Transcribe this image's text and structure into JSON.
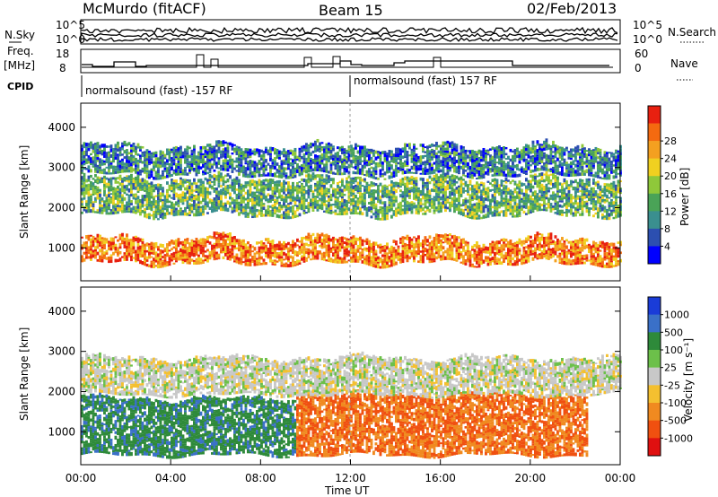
{
  "header": {
    "station": "McMurdo (fitACF)",
    "beam": "Beam 15",
    "date": "02/Feb/2013"
  },
  "params": {
    "nsky_label": "N.Sky",
    "nsearch_label": "N.Search",
    "noise_ticks": [
      "10^5",
      "10^0"
    ],
    "freq_label": "Freq.",
    "freq_unit": "[MHz]",
    "freq_ticks": [
      "18",
      "8"
    ],
    "nave_label": "Nave",
    "nave_ticks": [
      "60",
      "0"
    ],
    "cpid_label": "CPID",
    "cpid_segments": [
      {
        "label": "normalsound (fast) -157 RF",
        "start_hour": 0,
        "end_hour": 12
      },
      {
        "label": "normalsound (fast) 157 RF",
        "start_hour": 12,
        "end_hour": 24
      }
    ]
  },
  "chart_data": [
    {
      "type": "heatmap",
      "title": "",
      "xlabel": "Time UT",
      "ylabel": "Slant Range [km]",
      "x_ticks": [
        "00:00",
        "04:00",
        "08:00",
        "12:00",
        "16:00",
        "20:00",
        "00:00"
      ],
      "xlim_hours": [
        0,
        24
      ],
      "y_ticks": [
        1000,
        2000,
        3000,
        4000
      ],
      "ylim": [
        180,
        4600
      ],
      "colorbar": {
        "label": "Power [dB]",
        "ticks": [
          4,
          8,
          12,
          16,
          20,
          24,
          28
        ],
        "range": [
          0,
          30
        ],
        "colors": [
          "#0000ff",
          "#2c4fb0",
          "#3a8f8f",
          "#4aa357",
          "#8fc83a",
          "#f0d020",
          "#f4a020",
          "#f46a10",
          "#e82010"
        ]
      },
      "bands": [
        {
          "start_km": 600,
          "end_km": 1200,
          "typical_db": 24,
          "extent": "00:00-24:00"
        },
        {
          "start_km": 1800,
          "end_km": 2700,
          "typical_db": 12,
          "extent": "00:00-24:00"
        },
        {
          "start_km": 2800,
          "end_km": 3500,
          "typical_db": 8,
          "extent": "00:00-24:00"
        }
      ]
    },
    {
      "type": "heatmap",
      "title": "",
      "xlabel": "Time UT",
      "ylabel": "Slant Range [km]",
      "x_ticks": [
        "00:00",
        "04:00",
        "08:00",
        "12:00",
        "16:00",
        "20:00",
        "00:00"
      ],
      "xlim_hours": [
        0,
        24
      ],
      "y_ticks": [
        1000,
        2000,
        3000,
        4000
      ],
      "ylim": [
        180,
        4600
      ],
      "colorbar": {
        "label": "Velocity [m s⁻¹]",
        "ticks": [
          1000,
          500,
          100,
          25,
          -25,
          -100,
          -500,
          -1000
        ],
        "colors": [
          "#1a3cd8",
          "#3a70c8",
          "#2e8a3a",
          "#6cc04a",
          "#c8c8c8",
          "#f4c030",
          "#f08a20",
          "#f05010",
          "#e01010"
        ]
      },
      "bands": [
        {
          "start_km": 400,
          "end_km": 1800,
          "typical_velocity": 250,
          "extent": "00:00-09:30"
        },
        {
          "start_km": 400,
          "end_km": 1900,
          "typical_velocity": -300,
          "extent": "09:30-22:30"
        },
        {
          "start_km": 1900,
          "end_km": 2800,
          "typical_velocity": 0,
          "extent": "00:00-24:00"
        }
      ]
    }
  ]
}
